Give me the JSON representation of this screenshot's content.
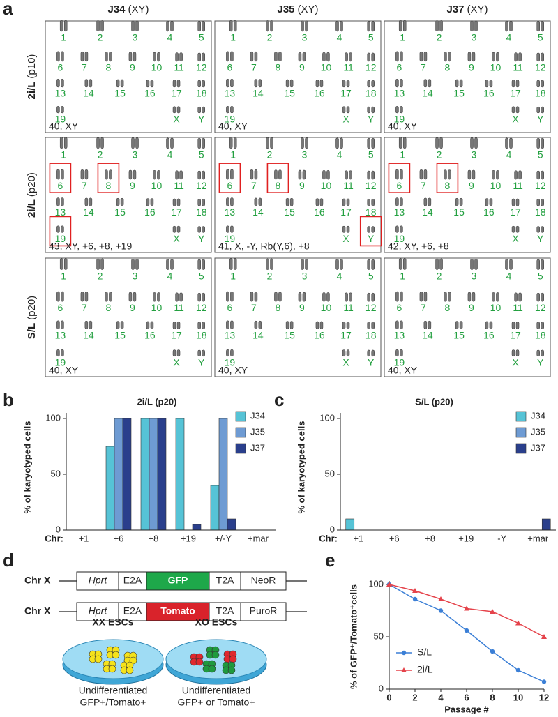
{
  "panel_labels": [
    "a",
    "b",
    "c",
    "d",
    "e"
  ],
  "karyotypes": {
    "columns": [
      {
        "name": "J34",
        "sex": "(XY)"
      },
      {
        "name": "J35",
        "sex": "(XY)"
      },
      {
        "name": "J37",
        "sex": "(XY)"
      }
    ],
    "rows": [
      {
        "medium": "2i/L",
        "passage": "(p10)"
      },
      {
        "medium": "2i/L",
        "passage": "(p20)"
      },
      {
        "medium": "S/L",
        "passage": "(p20)"
      }
    ],
    "chromosomes": [
      "1",
      "2",
      "3",
      "4",
      "5",
      "6",
      "7",
      "8",
      "9",
      "10",
      "11",
      "12",
      "13",
      "14",
      "15",
      "16",
      "17",
      "18",
      "19",
      "X",
      "Y"
    ],
    "cells": [
      [
        "40, XY",
        "40, XY",
        "40, XY"
      ],
      [
        "43, XY, +6, +8, +19",
        "41, X, -Y, Rb(Y,6), +8",
        "42, XY, +6, +8"
      ],
      [
        "40, XY",
        "40, XY",
        "40, XY"
      ]
    ]
  },
  "chart_data": [
    {
      "type": "bar",
      "title": "2i/L (p20)",
      "xlabel": "Chr:",
      "ylabel": "% of karyotyped cells",
      "categories": [
        "+1",
        "+6",
        "+8",
        "+19",
        "+/-Y",
        "+mar"
      ],
      "series": [
        {
          "name": "J34",
          "color": "#56c3d6",
          "values": [
            0,
            75,
            100,
            100,
            40,
            0
          ]
        },
        {
          "name": "J35",
          "color": "#6e9bd3",
          "values": [
            0,
            100,
            100,
            0,
            100,
            0
          ]
        },
        {
          "name": "J37",
          "color": "#2a3f8c",
          "values": [
            0,
            100,
            100,
            5,
            10,
            0
          ]
        }
      ],
      "ylim": [
        0,
        100
      ],
      "yticks": [
        0,
        50,
        100
      ],
      "legend": "upper right"
    },
    {
      "type": "bar",
      "title": "S/L (p20)",
      "xlabel": "Chr:",
      "ylabel": "% of karyotyped cells",
      "categories": [
        "+1",
        "+6",
        "+8",
        "+19",
        "-Y",
        "+mar"
      ],
      "series": [
        {
          "name": "J34",
          "color": "#56c3d6",
          "values": [
            10,
            0,
            0,
            0,
            0,
            0
          ]
        },
        {
          "name": "J35",
          "color": "#6e9bd3",
          "values": [
            0,
            0,
            0,
            0,
            0,
            0
          ]
        },
        {
          "name": "J37",
          "color": "#2a3f8c",
          "values": [
            0,
            0,
            0,
            0,
            0,
            10
          ]
        }
      ],
      "ylim": [
        0,
        100
      ],
      "yticks": [
        0,
        50,
        100
      ],
      "legend": "upper right"
    },
    {
      "type": "line",
      "xlabel": "Passage #",
      "ylabel": "% of GFP⁺/Tomato⁺cells",
      "x": [
        0,
        2,
        4,
        6,
        8,
        10,
        12
      ],
      "series": [
        {
          "name": "S/L",
          "color": "#3b7fd6",
          "marker": "circle",
          "values": [
            100,
            86,
            75,
            56,
            36,
            18,
            7
          ]
        },
        {
          "name": "2i/L",
          "color": "#e5434b",
          "marker": "triangle",
          "values": [
            100,
            94,
            86,
            77,
            74,
            63,
            50
          ]
        }
      ],
      "xlim": [
        0,
        12
      ],
      "ylim": [
        0,
        100
      ],
      "xticks": [
        0,
        2,
        4,
        6,
        8,
        10,
        12
      ],
      "yticks": [
        0,
        50,
        100
      ],
      "legend": "lower left"
    }
  ],
  "constructs": {
    "chromosome": "Chr X",
    "rows": [
      [
        "Hprt",
        "E2A",
        "GFP",
        "T2A",
        "NeoR"
      ],
      [
        "Hprt",
        "E2A",
        "Tomato",
        "T2A",
        "PuroR"
      ]
    ]
  },
  "dishes": [
    {
      "name": "XX ESCs",
      "caption": [
        "Undifferentiated",
        "GFP+/Tomato+"
      ]
    },
    {
      "name": "XO ESCs",
      "caption": [
        "Undifferentiated",
        "GFP+ or Tomato+"
      ]
    }
  ]
}
